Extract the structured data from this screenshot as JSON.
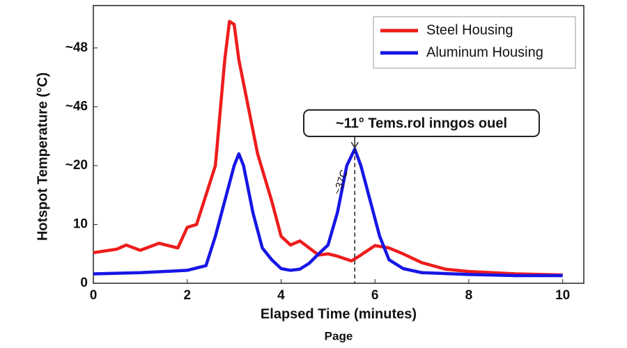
{
  "chart_data": {
    "type": "line",
    "x_label": "Elapsed Time (minutes)",
    "y_label": "Hotspot Temperature (°C)",
    "footer": "Page",
    "annotations": [
      "~11° Tems.rol inngos ouel",
      "~37C"
    ],
    "legend": "upper right",
    "xlim": [
      0,
      10.45
    ],
    "xticks": [
      0,
      2,
      4,
      6,
      8,
      10
    ],
    "ylim": [
      0,
      47.2
    ],
    "yticks": [
      0,
      10,
      {
        "value": 20,
        "label": "~20"
      },
      {
        "value": 30,
        "label": "~46"
      },
      {
        "value": 40,
        "label": "~48"
      }
    ],
    "series": [
      {
        "name": "Steel Housing",
        "color": "#ee1c1c",
        "x": [
          0,
          0.5,
          0.7,
          1,
          1.4,
          1.8,
          2.0,
          2.2,
          2.4,
          2.6,
          2.8,
          2.9,
          3.0,
          3.1,
          3.3,
          3.5,
          3.8,
          4.0,
          4.2,
          4.4,
          4.6,
          4.8,
          5.0,
          5.2,
          5.5,
          5.7,
          6.0,
          6.3,
          6.6,
          7.0,
          7.5,
          8,
          8.5,
          9,
          10
        ],
        "values": [
          5.2,
          5.8,
          6.5,
          5.6,
          6.8,
          6.0,
          9.5,
          10,
          15,
          20,
          38,
          44.5,
          44,
          38,
          30,
          22,
          14,
          8,
          6.5,
          7.2,
          6,
          4.8,
          5,
          4.6,
          3.8,
          4.8,
          6.4,
          6.0,
          5.0,
          3.5,
          2.4,
          2.0,
          1.8,
          1.6,
          1.4
        ]
      },
      {
        "name": "Aluminum Housing",
        "color": "#1616e6",
        "x": [
          0,
          1,
          2,
          2.4,
          2.6,
          2.8,
          3.0,
          3.1,
          3.2,
          3.4,
          3.6,
          3.8,
          4.0,
          4.2,
          4.4,
          4.6,
          4.8,
          5.0,
          5.2,
          5.4,
          5.57,
          5.7,
          5.9,
          6.1,
          6.3,
          6.6,
          7,
          8,
          9,
          10
        ],
        "values": [
          1.6,
          1.8,
          2.2,
          3,
          8,
          14,
          20,
          22,
          20,
          12,
          6,
          4,
          2.5,
          2.2,
          2.4,
          3.4,
          5,
          6.5,
          12,
          20,
          22.8,
          20,
          14,
          8,
          4,
          2.5,
          1.8,
          1.5,
          1.3,
          1.3
        ]
      }
    ]
  }
}
